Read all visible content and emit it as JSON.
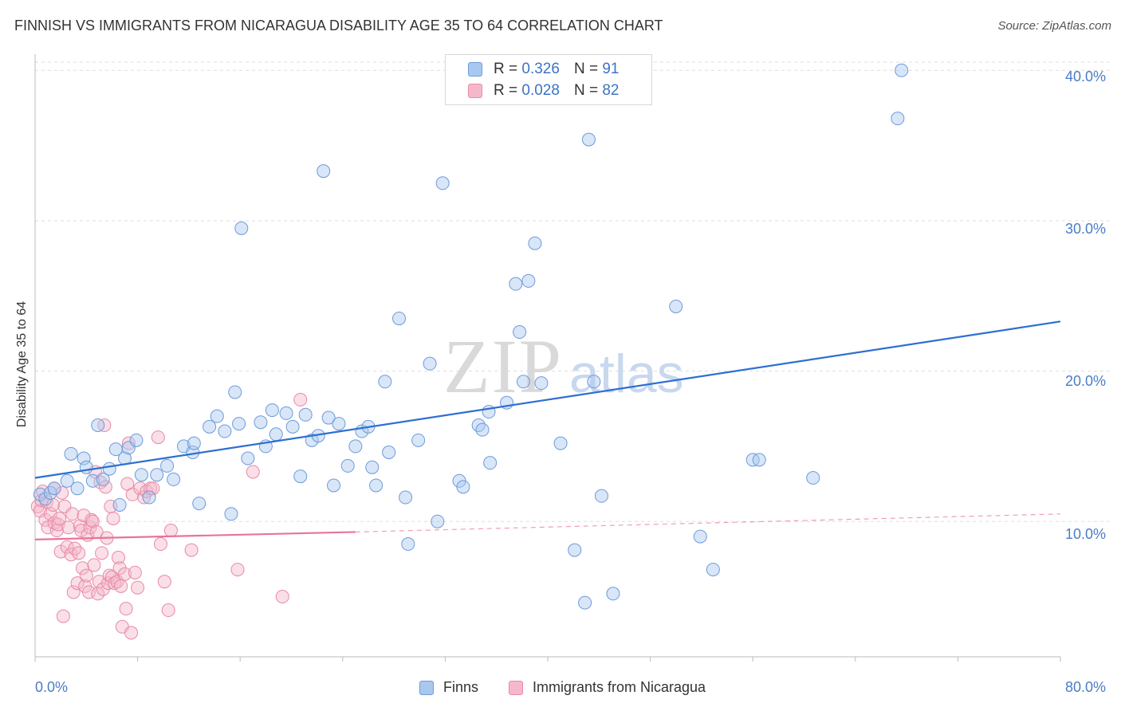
{
  "header": {
    "title": "FINNISH VS IMMIGRANTS FROM NICARAGUA DISABILITY AGE 35 TO 64 CORRELATION CHART",
    "source": "Source: ZipAtlas.com"
  },
  "watermark": {
    "zip": "ZIP",
    "atlas": "atlas"
  },
  "legend": {
    "finns": {
      "r_label": "R =",
      "r_value": "0.326",
      "n_label": "N =",
      "n_value": "91"
    },
    "nicaragua": {
      "r_label": "R =",
      "r_value": "0.028",
      "n_label": "N =",
      "n_value": "82"
    }
  },
  "bottom_legend": {
    "finns": "Finns",
    "nicaragua": "Immigrants from Nicaragua"
  },
  "colors": {
    "finns_fill": "#a9c8ef",
    "finns_stroke": "#6c9bd9",
    "finns_line": "#2e6fd1",
    "nic_fill": "#f5b8ca",
    "nic_stroke": "#e889a7",
    "nic_line": "#e8739b",
    "tick_text": "#4a7cc7",
    "grid": "#dddddd"
  },
  "chart_data": {
    "type": "scatter",
    "title": "FINNISH VS IMMIGRANTS FROM NICARAGUA DISABILITY AGE 35 TO 64 CORRELATION CHART",
    "xlabel": "",
    "ylabel": "Disability Age 35 to 64",
    "xlim": [
      0,
      80
    ],
    "ylim": [
      1.0,
      41.5
    ],
    "x_tick_labels": [
      "0.0%",
      "80.0%"
    ],
    "y_tick_labels": [
      "10.0%",
      "20.0%",
      "30.0%",
      "40.0%"
    ],
    "y_ticks": [
      10,
      20,
      30,
      40
    ],
    "grid": true,
    "legend_position": "top-center",
    "series": [
      {
        "name": "Finns",
        "R": 0.326,
        "N": 91,
        "trend": {
          "x": [
            0,
            80
          ],
          "y": [
            12.9,
            23.3
          ],
          "style": "solid"
        },
        "points": [
          [
            0.4,
            11.8
          ],
          [
            0.8,
            11.5
          ],
          [
            1.2,
            11.9
          ],
          [
            1.5,
            12.2
          ],
          [
            2.5,
            12.7
          ],
          [
            2.8,
            14.5
          ],
          [
            3.3,
            12.2
          ],
          [
            3.8,
            14.2
          ],
          [
            4.0,
            13.6
          ],
          [
            4.5,
            12.7
          ],
          [
            4.9,
            16.4
          ],
          [
            5.3,
            12.8
          ],
          [
            5.8,
            13.5
          ],
          [
            6.3,
            14.8
          ],
          [
            6.6,
            11.1
          ],
          [
            7.0,
            14.2
          ],
          [
            7.3,
            14.9
          ],
          [
            7.9,
            15.4
          ],
          [
            8.3,
            13.1
          ],
          [
            8.9,
            11.6
          ],
          [
            9.5,
            13.1
          ],
          [
            10.3,
            13.7
          ],
          [
            10.8,
            12.8
          ],
          [
            11.6,
            15.0
          ],
          [
            12.3,
            14.6
          ],
          [
            12.4,
            15.2
          ],
          [
            12.8,
            11.2
          ],
          [
            13.6,
            16.3
          ],
          [
            14.2,
            17.0
          ],
          [
            14.8,
            16.0
          ],
          [
            15.3,
            10.5
          ],
          [
            15.9,
            16.5
          ],
          [
            15.6,
            18.6
          ],
          [
            16.1,
            29.5
          ],
          [
            16.6,
            14.2
          ],
          [
            17.6,
            16.6
          ],
          [
            18.0,
            15.0
          ],
          [
            18.5,
            17.4
          ],
          [
            18.8,
            15.8
          ],
          [
            19.6,
            17.2
          ],
          [
            20.1,
            16.3
          ],
          [
            20.7,
            13.0
          ],
          [
            21.1,
            17.1
          ],
          [
            21.6,
            15.4
          ],
          [
            22.1,
            15.7
          ],
          [
            22.5,
            33.3
          ],
          [
            22.9,
            16.9
          ],
          [
            23.3,
            12.4
          ],
          [
            23.7,
            16.5
          ],
          [
            24.4,
            13.7
          ],
          [
            25.0,
            15.0
          ],
          [
            25.5,
            16.0
          ],
          [
            26.0,
            16.3
          ],
          [
            26.3,
            13.6
          ],
          [
            26.6,
            12.4
          ],
          [
            27.3,
            19.3
          ],
          [
            27.6,
            14.6
          ],
          [
            28.4,
            23.5
          ],
          [
            28.9,
            11.6
          ],
          [
            29.1,
            8.5
          ],
          [
            29.9,
            15.4
          ],
          [
            30.8,
            20.5
          ],
          [
            31.4,
            10.0
          ],
          [
            31.8,
            32.5
          ],
          [
            33.1,
            12.7
          ],
          [
            33.4,
            12.3
          ],
          [
            34.6,
            16.4
          ],
          [
            34.9,
            16.1
          ],
          [
            35.4,
            17.3
          ],
          [
            35.5,
            13.9
          ],
          [
            36.8,
            17.9
          ],
          [
            37.5,
            25.8
          ],
          [
            37.8,
            22.6
          ],
          [
            38.1,
            19.3
          ],
          [
            38.5,
            26.0
          ],
          [
            39.0,
            28.5
          ],
          [
            39.5,
            19.2
          ],
          [
            41.0,
            15.2
          ],
          [
            42.1,
            8.1
          ],
          [
            42.9,
            4.6
          ],
          [
            43.2,
            35.4
          ],
          [
            43.6,
            19.3
          ],
          [
            44.2,
            11.7
          ],
          [
            45.1,
            5.2
          ],
          [
            50.0,
            24.3
          ],
          [
            51.9,
            9.0
          ],
          [
            52.9,
            6.8
          ],
          [
            56.0,
            14.1
          ],
          [
            56.5,
            14.1
          ],
          [
            60.7,
            12.9
          ],
          [
            67.3,
            36.8
          ],
          [
            67.6,
            40.0
          ]
        ]
      },
      {
        "name": "Immigrants from Nicaragua",
        "R": 0.028,
        "N": 82,
        "trend": {
          "x": [
            0,
            25
          ],
          "y": [
            8.8,
            9.3
          ],
          "style": "solid",
          "extension": {
            "x": [
              25,
              80
            ],
            "y": [
              9.3,
              10.5
            ],
            "style": "dashed"
          }
        },
        "points": [
          [
            0.2,
            11.0
          ],
          [
            0.4,
            10.7
          ],
          [
            0.5,
            11.4
          ],
          [
            0.8,
            10.1
          ],
          [
            0.9,
            11.3
          ],
          [
            1.0,
            9.6
          ],
          [
            1.2,
            10.5
          ],
          [
            1.4,
            11.1
          ],
          [
            1.5,
            9.9
          ],
          [
            1.5,
            12.2
          ],
          [
            1.7,
            9.4
          ],
          [
            1.8,
            9.8
          ],
          [
            1.9,
            10.2
          ],
          [
            2.0,
            8.0
          ],
          [
            2.1,
            11.9
          ],
          [
            2.2,
            3.7
          ],
          [
            2.3,
            11.0
          ],
          [
            2.5,
            8.3
          ],
          [
            2.6,
            9.6
          ],
          [
            2.8,
            7.8
          ],
          [
            2.9,
            10.5
          ],
          [
            3.0,
            5.3
          ],
          [
            3.1,
            8.2
          ],
          [
            3.3,
            5.9
          ],
          [
            3.4,
            7.9
          ],
          [
            3.5,
            9.7
          ],
          [
            3.6,
            9.4
          ],
          [
            3.7,
            6.9
          ],
          [
            3.8,
            10.4
          ],
          [
            3.9,
            5.7
          ],
          [
            4.0,
            6.4
          ],
          [
            4.1,
            9.1
          ],
          [
            4.2,
            5.3
          ],
          [
            4.3,
            9.6
          ],
          [
            4.4,
            10.1
          ],
          [
            4.5,
            10.0
          ],
          [
            4.6,
            7.1
          ],
          [
            4.7,
            13.3
          ],
          [
            4.8,
            9.3
          ],
          [
            4.9,
            5.2
          ],
          [
            5.0,
            6.0
          ],
          [
            5.1,
            12.6
          ],
          [
            5.2,
            7.9
          ],
          [
            5.3,
            5.5
          ],
          [
            5.4,
            16.4
          ],
          [
            5.5,
            12.3
          ],
          [
            5.6,
            8.9
          ],
          [
            5.7,
            5.9
          ],
          [
            5.8,
            6.4
          ],
          [
            5.9,
            11.0
          ],
          [
            6.0,
            6.3
          ],
          [
            6.1,
            10.2
          ],
          [
            6.2,
            5.9
          ],
          [
            6.4,
            6.0
          ],
          [
            6.5,
            7.6
          ],
          [
            6.6,
            6.9
          ],
          [
            6.7,
            5.7
          ],
          [
            6.8,
            3.0
          ],
          [
            7.0,
            6.5
          ],
          [
            7.1,
            4.2
          ],
          [
            7.2,
            12.5
          ],
          [
            7.3,
            15.2
          ],
          [
            7.5,
            2.6
          ],
          [
            7.6,
            11.8
          ],
          [
            7.8,
            6.6
          ],
          [
            8.0,
            5.6
          ],
          [
            8.2,
            12.2
          ],
          [
            8.5,
            11.6
          ],
          [
            8.7,
            12.0
          ],
          [
            9.0,
            12.2
          ],
          [
            9.2,
            12.2
          ],
          [
            9.6,
            15.6
          ],
          [
            9.8,
            8.5
          ],
          [
            10.1,
            6.0
          ],
          [
            10.4,
            4.1
          ],
          [
            10.6,
            9.4
          ],
          [
            12.2,
            8.1
          ],
          [
            15.8,
            6.8
          ],
          [
            17.0,
            13.3
          ],
          [
            19.3,
            5.0
          ],
          [
            20.7,
            18.1
          ],
          [
            0.6,
            12.0
          ]
        ]
      }
    ]
  }
}
